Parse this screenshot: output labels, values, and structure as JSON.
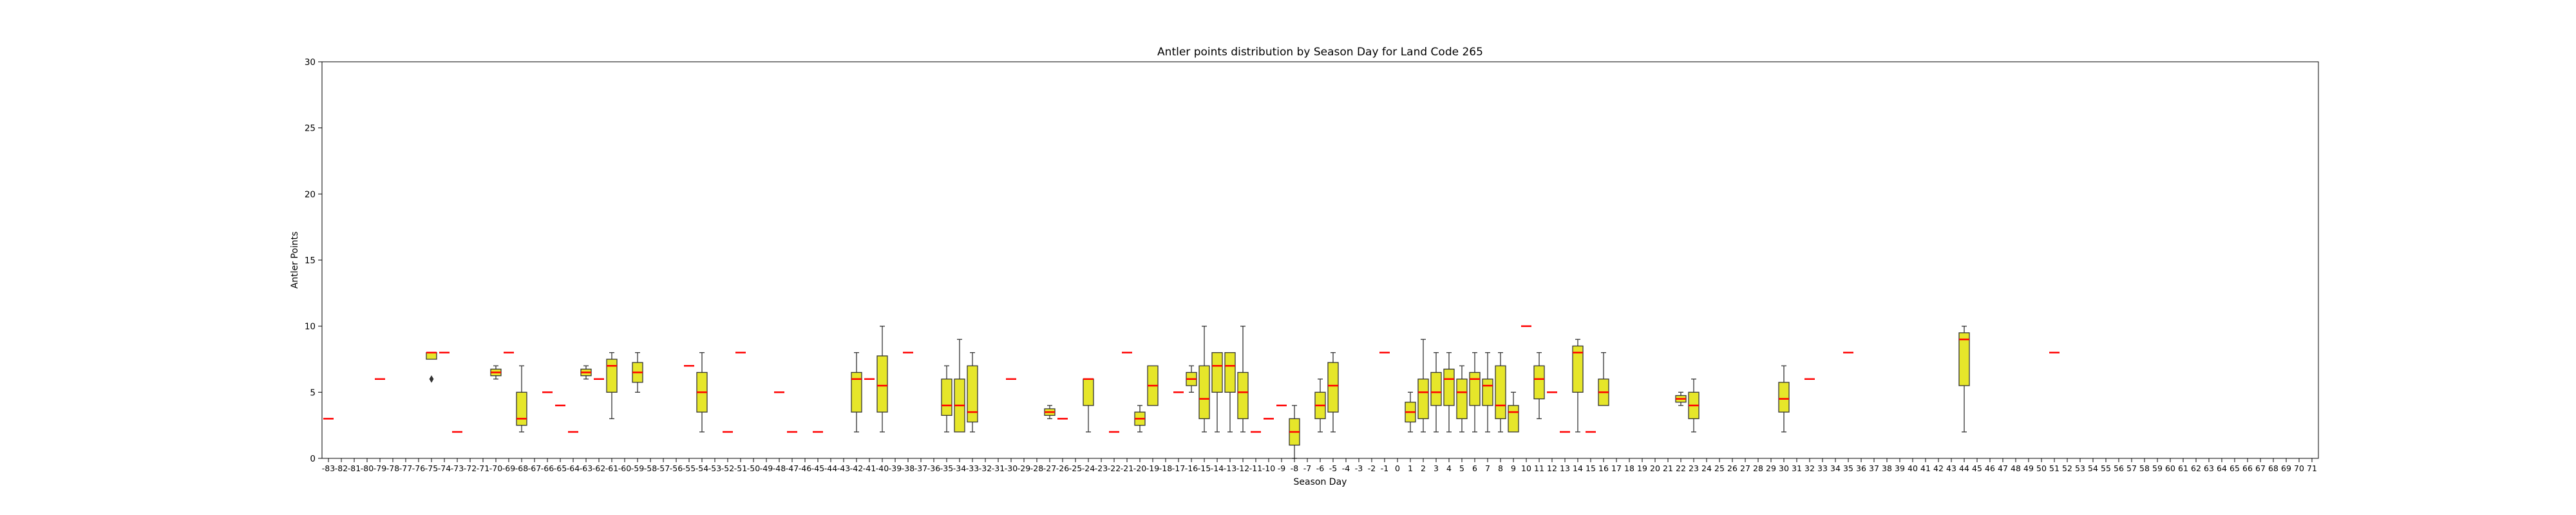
{
  "chart_data": {
    "type": "box",
    "title": "Antler points distribution by Season Day for Land Code 265",
    "xlabel": "Season Day",
    "ylabel": "Antler Points",
    "ylim": [
      0,
      30
    ],
    "yticks": [
      0,
      5,
      10,
      15,
      20,
      25,
      30
    ],
    "x_range": [
      -83,
      71
    ],
    "grid": false,
    "colors": {
      "box_fill": "#e6e62a",
      "median": "#ff0000",
      "line": "#333333"
    },
    "boxes": [
      {
        "day": -83,
        "q1": 3,
        "med": 3,
        "q3": 3,
        "lo": 3,
        "hi": 3
      },
      {
        "day": -79,
        "q1": 6,
        "med": 6,
        "q3": 6,
        "lo": 6,
        "hi": 6
      },
      {
        "day": -75,
        "q1": 7.5,
        "med": 8,
        "q3": 8,
        "lo": 7.5,
        "hi": 8,
        "fliers": [
          6
        ]
      },
      {
        "day": -74,
        "q1": 8,
        "med": 8,
        "q3": 8,
        "lo": 8,
        "hi": 8
      },
      {
        "day": -73,
        "q1": 2,
        "med": 2,
        "q3": 2,
        "lo": 2,
        "hi": 2
      },
      {
        "day": -70,
        "q1": 6.25,
        "med": 6.5,
        "q3": 6.75,
        "lo": 6,
        "hi": 7
      },
      {
        "day": -69,
        "q1": 8,
        "med": 8,
        "q3": 8,
        "lo": 8,
        "hi": 8
      },
      {
        "day": -68,
        "q1": 2.5,
        "med": 3,
        "q3": 5,
        "lo": 2,
        "hi": 7
      },
      {
        "day": -66,
        "q1": 5,
        "med": 5,
        "q3": 5,
        "lo": 5,
        "hi": 5
      },
      {
        "day": -65,
        "q1": 4,
        "med": 4,
        "q3": 4,
        "lo": 4,
        "hi": 4
      },
      {
        "day": -64,
        "q1": 2,
        "med": 2,
        "q3": 2,
        "lo": 2,
        "hi": 2
      },
      {
        "day": -63,
        "q1": 6.25,
        "med": 6.5,
        "q3": 6.75,
        "lo": 6,
        "hi": 7
      },
      {
        "day": -62,
        "q1": 6,
        "med": 6,
        "q3": 6,
        "lo": 6,
        "hi": 6
      },
      {
        "day": -61,
        "q1": 5,
        "med": 7,
        "q3": 7.5,
        "lo": 3,
        "hi": 8
      },
      {
        "day": -59,
        "q1": 5.75,
        "med": 6.5,
        "q3": 7.25,
        "lo": 5,
        "hi": 8
      },
      {
        "day": -55,
        "q1": 7,
        "med": 7,
        "q3": 7,
        "lo": 7,
        "hi": 7
      },
      {
        "day": -54,
        "q1": 3.5,
        "med": 5,
        "q3": 6.5,
        "lo": 2,
        "hi": 8
      },
      {
        "day": -52,
        "q1": 2,
        "med": 2,
        "q3": 2,
        "lo": 2,
        "hi": 2
      },
      {
        "day": -51,
        "q1": 8,
        "med": 8,
        "q3": 8,
        "lo": 8,
        "hi": 8
      },
      {
        "day": -48,
        "q1": 5,
        "med": 5,
        "q3": 5,
        "lo": 5,
        "hi": 5
      },
      {
        "day": -47,
        "q1": 2,
        "med": 2,
        "q3": 2,
        "lo": 2,
        "hi": 2
      },
      {
        "day": -45,
        "q1": 2,
        "med": 2,
        "q3": 2,
        "lo": 2,
        "hi": 2
      },
      {
        "day": -42,
        "q1": 3.5,
        "med": 6,
        "q3": 6.5,
        "lo": 2,
        "hi": 8
      },
      {
        "day": -41,
        "q1": 6,
        "med": 6,
        "q3": 6,
        "lo": 6,
        "hi": 6
      },
      {
        "day": -40,
        "q1": 3.5,
        "med": 5.5,
        "q3": 7.75,
        "lo": 2,
        "hi": 10
      },
      {
        "day": -38,
        "q1": 8,
        "med": 8,
        "q3": 8,
        "lo": 8,
        "hi": 8
      },
      {
        "day": -35,
        "q1": 3.25,
        "med": 4,
        "q3": 6,
        "lo": 2,
        "hi": 7
      },
      {
        "day": -34,
        "q1": 2,
        "med": 4,
        "q3": 6,
        "lo": 2,
        "hi": 9
      },
      {
        "day": -33,
        "q1": 2.75,
        "med": 3.5,
        "q3": 7,
        "lo": 2,
        "hi": 8
      },
      {
        "day": -30,
        "q1": 6,
        "med": 6,
        "q3": 6,
        "lo": 6,
        "hi": 6
      },
      {
        "day": -27,
        "q1": 3.25,
        "med": 3.5,
        "q3": 3.75,
        "lo": 3,
        "hi": 4
      },
      {
        "day": -26,
        "q1": 3,
        "med": 3,
        "q3": 3,
        "lo": 3,
        "hi": 3
      },
      {
        "day": -24,
        "q1": 4,
        "med": 6,
        "q3": 6,
        "lo": 2,
        "hi": 6
      },
      {
        "day": -22,
        "q1": 2,
        "med": 2,
        "q3": 2,
        "lo": 2,
        "hi": 2
      },
      {
        "day": -21,
        "q1": 8,
        "med": 8,
        "q3": 8,
        "lo": 8,
        "hi": 8
      },
      {
        "day": -20,
        "q1": 2.5,
        "med": 3,
        "q3": 3.5,
        "lo": 2,
        "hi": 4
      },
      {
        "day": -19,
        "q1": 4,
        "med": 5.5,
        "q3": 7,
        "lo": 4,
        "hi": 7
      },
      {
        "day": -17,
        "q1": 5,
        "med": 5,
        "q3": 5,
        "lo": 5,
        "hi": 5
      },
      {
        "day": -16,
        "q1": 5.5,
        "med": 6,
        "q3": 6.5,
        "lo": 5,
        "hi": 7
      },
      {
        "day": -15,
        "q1": 3,
        "med": 4.5,
        "q3": 7,
        "lo": 2,
        "hi": 10
      },
      {
        "day": -14,
        "q1": 5,
        "med": 7,
        "q3": 8,
        "lo": 2,
        "hi": 8
      },
      {
        "day": -13,
        "q1": 5,
        "med": 7,
        "q3": 8,
        "lo": 2,
        "hi": 8
      },
      {
        "day": -12,
        "q1": 3,
        "med": 5,
        "q3": 6.5,
        "lo": 2,
        "hi": 10
      },
      {
        "day": -11,
        "q1": 2,
        "med": 2,
        "q3": 2,
        "lo": 2,
        "hi": 2
      },
      {
        "day": -10,
        "q1": 3,
        "med": 3,
        "q3": 3,
        "lo": 3,
        "hi": 3
      },
      {
        "day": -9,
        "q1": 4,
        "med": 4,
        "q3": 4,
        "lo": 4,
        "hi": 4
      },
      {
        "day": -8,
        "q1": 1,
        "med": 2,
        "q3": 3,
        "lo": 0,
        "hi": 4
      },
      {
        "day": -6,
        "q1": 3,
        "med": 4,
        "q3": 5,
        "lo": 2,
        "hi": 6
      },
      {
        "day": -5,
        "q1": 3.5,
        "med": 5.5,
        "q3": 7.25,
        "lo": 2,
        "hi": 8
      },
      {
        "day": -1,
        "q1": 8,
        "med": 8,
        "q3": 8,
        "lo": 8,
        "hi": 8
      },
      {
        "day": 1,
        "q1": 2.75,
        "med": 3.5,
        "q3": 4.25,
        "lo": 2,
        "hi": 5
      },
      {
        "day": 2,
        "q1": 3,
        "med": 5,
        "q3": 6,
        "lo": 2,
        "hi": 9
      },
      {
        "day": 3,
        "q1": 4,
        "med": 5,
        "q3": 6.5,
        "lo": 2,
        "hi": 8
      },
      {
        "day": 4,
        "q1": 4,
        "med": 6,
        "q3": 6.75,
        "lo": 2,
        "hi": 8
      },
      {
        "day": 5,
        "q1": 3,
        "med": 5,
        "q3": 6,
        "lo": 2,
        "hi": 7
      },
      {
        "day": 6,
        "q1": 4,
        "med": 6,
        "q3": 6.5,
        "lo": 2,
        "hi": 8
      },
      {
        "day": 7,
        "q1": 4,
        "med": 5.5,
        "q3": 6,
        "lo": 2,
        "hi": 8
      },
      {
        "day": 8,
        "q1": 3,
        "med": 4,
        "q3": 7,
        "lo": 2,
        "hi": 8
      },
      {
        "day": 9,
        "q1": 2,
        "med": 3.5,
        "q3": 4,
        "lo": 2,
        "hi": 5
      },
      {
        "day": 10,
        "q1": 10,
        "med": 10,
        "q3": 10,
        "lo": 10,
        "hi": 10
      },
      {
        "day": 11,
        "q1": 4.5,
        "med": 6,
        "q3": 7,
        "lo": 3,
        "hi": 8
      },
      {
        "day": 12,
        "q1": 5,
        "med": 5,
        "q3": 5,
        "lo": 5,
        "hi": 5
      },
      {
        "day": 13,
        "q1": 2,
        "med": 2,
        "q3": 2,
        "lo": 2,
        "hi": 2
      },
      {
        "day": 14,
        "q1": 5,
        "med": 8,
        "q3": 8.5,
        "lo": 2,
        "hi": 9
      },
      {
        "day": 15,
        "q1": 2,
        "med": 2,
        "q3": 2,
        "lo": 2,
        "hi": 2
      },
      {
        "day": 16,
        "q1": 4,
        "med": 5,
        "q3": 6,
        "lo": 4,
        "hi": 8
      },
      {
        "day": 22,
        "q1": 4.25,
        "med": 4.5,
        "q3": 4.75,
        "lo": 4,
        "hi": 5
      },
      {
        "day": 23,
        "q1": 3,
        "med": 4,
        "q3": 5,
        "lo": 2,
        "hi": 6
      },
      {
        "day": 30,
        "q1": 3.5,
        "med": 4.5,
        "q3": 5.75,
        "lo": 2,
        "hi": 7
      },
      {
        "day": 32,
        "q1": 6,
        "med": 6,
        "q3": 6,
        "lo": 6,
        "hi": 6
      },
      {
        "day": 35,
        "q1": 8,
        "med": 8,
        "q3": 8,
        "lo": 8,
        "hi": 8
      },
      {
        "day": 44,
        "q1": 5.5,
        "med": 9,
        "q3": 9.5,
        "lo": 2,
        "hi": 10
      },
      {
        "day": 51,
        "q1": 8,
        "med": 8,
        "q3": 8,
        "lo": 8,
        "hi": 8
      }
    ]
  }
}
